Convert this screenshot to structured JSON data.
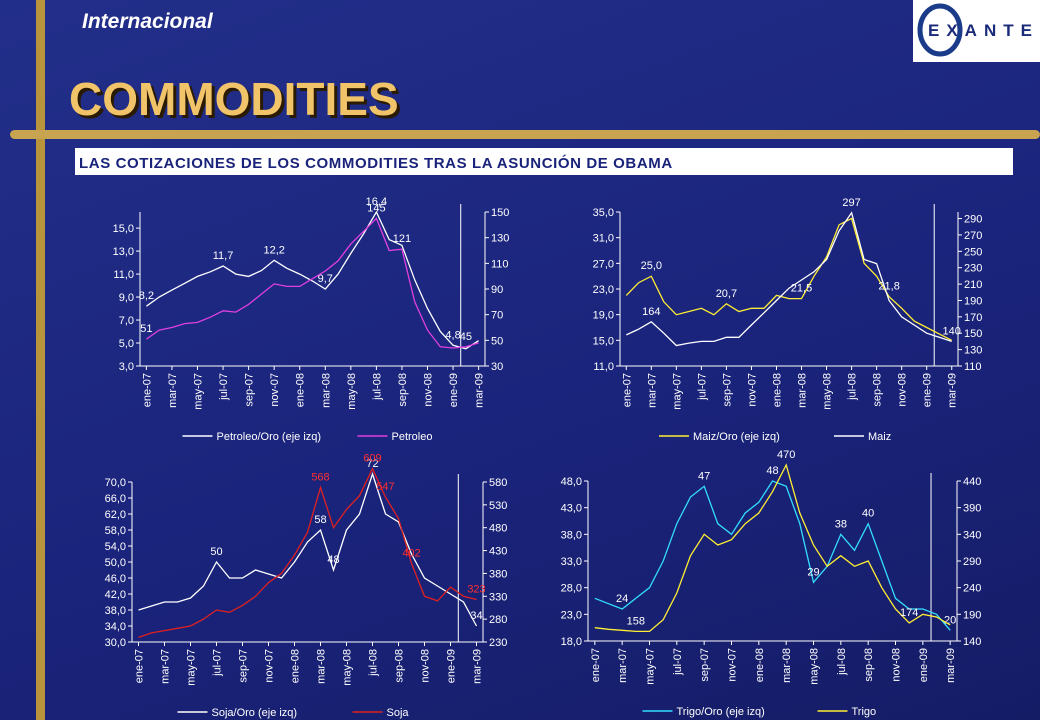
{
  "header": {
    "section": "Internacional",
    "title": "COMMODITIES",
    "subtitle": "LAS COTIZACIONES DE LOS COMMODITIES TRAS LA ASUNCIÓN DE OBAMA",
    "logo": "EXANTE"
  },
  "chart_data": [
    {
      "type": "line",
      "categories": [
        "ene-07",
        null,
        "mar-07",
        null,
        "may-07",
        null,
        "jul-07",
        null,
        "sep-07",
        null,
        "nov-07",
        null,
        "ene-08",
        null,
        "mar-08",
        null,
        "may-08",
        null,
        "jul-08",
        null,
        "sep-08",
        null,
        "nov-08",
        null,
        "ene-09",
        null,
        "mar-09"
      ],
      "ylim": [
        3,
        16.4
      ],
      "yticks": [
        {
          "value": 3,
          "label": "3,0"
        },
        {
          "value": 5,
          "label": "5,0"
        },
        {
          "value": 7,
          "label": "7,0"
        },
        {
          "value": 9,
          "label": "9,0"
        },
        {
          "value": 11,
          "label": "11,0"
        },
        {
          "value": 13,
          "label": "13,0"
        },
        {
          "value": 15,
          "label": "15,0"
        }
      ],
      "y2lim": [
        30,
        150
      ],
      "y2ticks": [
        30,
        50,
        70,
        90,
        110,
        130,
        150
      ],
      "series": [
        {
          "name": "Petroleo/Oro (eje izq)",
          "color": "#ffffff",
          "label_color": "#ffffff",
          "values": [
            8.2,
            9.0,
            9.6,
            10.2,
            10.8,
            11.2,
            11.7,
            11.0,
            10.8,
            11.3,
            12.2,
            11.5,
            11.0,
            10.4,
            9.7,
            11.0,
            12.8,
            14.5,
            16.4,
            14.0,
            13.5,
            10.5,
            8.0,
            6.0,
            4.8,
            4.5,
            5.2
          ],
          "value_labels": [
            "8,2",
            null,
            null,
            null,
            null,
            null,
            "11,7",
            null,
            null,
            null,
            "12,2",
            null,
            null,
            null,
            "9,7",
            null,
            null,
            null,
            "16,4",
            null,
            null,
            null,
            null,
            null,
            "4,8",
            null,
            null
          ]
        },
        {
          "name": "Petroleo",
          "color": "#e040e0",
          "axis": "y2",
          "label_color": "#ffffff",
          "values": [
            51,
            58,
            60,
            63,
            64,
            68,
            73,
            72,
            78,
            86,
            94,
            92,
            92,
            98,
            104,
            112,
            125,
            135,
            145,
            120,
            121,
            80,
            58,
            45,
            44,
            45,
            48
          ],
          "value_labels": [
            "51",
            null,
            null,
            null,
            null,
            null,
            null,
            null,
            null,
            null,
            null,
            null,
            null,
            null,
            null,
            null,
            null,
            null,
            "145",
            null,
            "121",
            null,
            null,
            null,
            null,
            "45",
            null
          ]
        }
      ]
    },
    {
      "type": "line",
      "categories": [
        "ene-07",
        null,
        "mar-07",
        null,
        "may-07",
        null,
        "jul-07",
        null,
        "sep-07",
        null,
        "nov-07",
        null,
        "ene-08",
        null,
        "mar-08",
        null,
        "may-08",
        null,
        "jul-08",
        null,
        "sep-08",
        null,
        "nov-08",
        null,
        "ene-09",
        null,
        "mar-09"
      ],
      "ylim": [
        11,
        35
      ],
      "yticks": [
        {
          "value": 11,
          "label": "11,0"
        },
        {
          "value": 15,
          "label": "15,0"
        },
        {
          "value": 19,
          "label": "19,0"
        },
        {
          "value": 23,
          "label": "23,0"
        },
        {
          "value": 27,
          "label": "27,0"
        },
        {
          "value": 31,
          "label": "31,0"
        },
        {
          "value": 35,
          "label": "35,0"
        }
      ],
      "y2lim": [
        110,
        298
      ],
      "y2ticks": [
        110,
        130,
        150,
        170,
        190,
        210,
        230,
        250,
        270,
        290
      ],
      "series": [
        {
          "name": "Maiz/Oro (eje izq)",
          "color": "#ffee33",
          "label_color": "#ffffff",
          "values": [
            22,
            24,
            25.0,
            21,
            19,
            19.5,
            20,
            19,
            20.7,
            19.5,
            20,
            20,
            22,
            21.5,
            21.5,
            25,
            28,
            33,
            34,
            27,
            25,
            21.8,
            20,
            18,
            17,
            16,
            15
          ],
          "value_labels": [
            null,
            null,
            "25,0",
            null,
            null,
            null,
            null,
            null,
            "20,7",
            null,
            null,
            null,
            null,
            null,
            "21,5",
            null,
            null,
            null,
            null,
            null,
            null,
            "21,8",
            null,
            null,
            null,
            null,
            null
          ]
        },
        {
          "name": "Maiz",
          "color": "#ffffff",
          "axis": "y2",
          "label_color": "#ffffff",
          "values": [
            148,
            155,
            164,
            150,
            135,
            138,
            140,
            140,
            145,
            145,
            160,
            175,
            190,
            205,
            215,
            225,
            240,
            275,
            297,
            240,
            235,
            190,
            170,
            160,
            150,
            145,
            140
          ],
          "value_labels": [
            null,
            null,
            "164",
            null,
            null,
            null,
            null,
            null,
            null,
            null,
            null,
            null,
            null,
            null,
            null,
            null,
            null,
            null,
            "297",
            null,
            null,
            null,
            null,
            null,
            null,
            null,
            "140"
          ]
        }
      ]
    },
    {
      "type": "line",
      "categories": [
        "ene-07",
        null,
        "mar-07",
        null,
        "may-07",
        null,
        "jul-07",
        null,
        "sep-07",
        null,
        "nov-07",
        null,
        "ene-08",
        null,
        "mar-08",
        null,
        "may-08",
        null,
        "jul-08",
        null,
        "sep-08",
        null,
        "nov-08",
        null,
        "ene-09",
        null,
        "mar-09"
      ],
      "ylim": [
        30,
        70
      ],
      "yticks": [
        {
          "value": 30,
          "label": "30,0"
        },
        {
          "value": 34,
          "label": "34,0"
        },
        {
          "value": 38,
          "label": "38,0"
        },
        {
          "value": 42,
          "label": "42,0"
        },
        {
          "value": 46,
          "label": "46,0"
        },
        {
          "value": 50,
          "label": "50,0"
        },
        {
          "value": 54,
          "label": "54,0"
        },
        {
          "value": 58,
          "label": "58,0"
        },
        {
          "value": 62,
          "label": "62,0"
        },
        {
          "value": 66,
          "label": "66,0"
        },
        {
          "value": 70,
          "label": "70,0"
        }
      ],
      "y2lim": [
        230,
        580
      ],
      "y2ticks": [
        230,
        280,
        330,
        380,
        430,
        480,
        530,
        580
      ],
      "series": [
        {
          "name": "Soja/Oro (eje izq)",
          "color": "#ffffff",
          "label_color": "#ffffff",
          "values": [
            38,
            39,
            40,
            40,
            41,
            44,
            50,
            46,
            46,
            48,
            47,
            46,
            50,
            55,
            58,
            48,
            58,
            62,
            72,
            62,
            60,
            52,
            46,
            44,
            42,
            40,
            34
          ],
          "value_labels": [
            null,
            null,
            null,
            null,
            null,
            null,
            "50",
            null,
            null,
            null,
            null,
            null,
            null,
            null,
            "58",
            "48",
            null,
            null,
            "72",
            null,
            null,
            null,
            null,
            null,
            null,
            null,
            "34"
          ]
        },
        {
          "name": "Soja",
          "color": "#e02020",
          "axis": "y2",
          "label_color": "#ff3030",
          "values": [
            240,
            250,
            255,
            260,
            265,
            280,
            300,
            295,
            310,
            330,
            360,
            380,
            420,
            470,
            568,
            480,
            520,
            550,
            609,
            547,
            500,
            402,
            330,
            320,
            350,
            330,
            323
          ],
          "value_labels": [
            null,
            null,
            null,
            null,
            null,
            null,
            null,
            null,
            null,
            null,
            null,
            null,
            null,
            null,
            "568",
            null,
            null,
            null,
            "609",
            "547",
            null,
            "402",
            null,
            null,
            null,
            null,
            "323"
          ]
        }
      ]
    },
    {
      "type": "line",
      "categories": [
        "ene-07",
        null,
        "mar-07",
        null,
        "may-07",
        null,
        "jul-07",
        null,
        "sep-07",
        null,
        "nov-07",
        null,
        "ene-08",
        null,
        "mar-08",
        null,
        "may-08",
        null,
        "jul-08",
        null,
        "sep-08",
        null,
        "nov-08",
        null,
        "ene-09",
        null,
        "mar-09"
      ],
      "ylim": [
        18,
        48
      ],
      "yticks": [
        {
          "value": 18,
          "label": "18,0"
        },
        {
          "value": 23,
          "label": "23,0"
        },
        {
          "value": 28,
          "label": "28,0"
        },
        {
          "value": 33,
          "label": "33,0"
        },
        {
          "value": 38,
          "label": "38,0"
        },
        {
          "value": 43,
          "label": "43,0"
        },
        {
          "value": 48,
          "label": "48,0"
        }
      ],
      "y2lim": [
        140,
        440
      ],
      "y2ticks": [
        140,
        190,
        240,
        290,
        340,
        390,
        440
      ],
      "series": [
        {
          "name": "Trigo/Oro (eje izq)",
          "color": "#33ddff",
          "label_color": "#ffffff",
          "values": [
            26,
            25,
            24,
            26,
            28,
            33,
            40,
            45,
            47,
            40,
            38,
            42,
            44,
            48,
            47,
            40,
            29,
            32,
            38,
            35,
            40,
            33,
            26,
            24,
            24,
            23,
            20
          ],
          "value_labels": [
            null,
            null,
            "24",
            null,
            null,
            null,
            null,
            null,
            "47",
            null,
            null,
            null,
            null,
            "48",
            null,
            null,
            "29",
            null,
            "38",
            null,
            "40",
            null,
            null,
            null,
            null,
            null,
            "20"
          ]
        },
        {
          "name": "Trigo",
          "color": "#ffee33",
          "axis": "y2",
          "label_color": "#ffffff",
          "values": [
            165,
            162,
            160,
            158,
            158,
            180,
            230,
            300,
            340,
            320,
            330,
            360,
            380,
            420,
            470,
            380,
            320,
            280,
            300,
            280,
            290,
            240,
            200,
            174,
            190,
            185,
            170
          ],
          "value_labels": [
            null,
            null,
            null,
            "158",
            null,
            null,
            null,
            null,
            null,
            null,
            null,
            null,
            null,
            null,
            "470",
            null,
            null,
            null,
            null,
            null,
            null,
            null,
            null,
            "174",
            null,
            null,
            null
          ]
        }
      ]
    }
  ]
}
